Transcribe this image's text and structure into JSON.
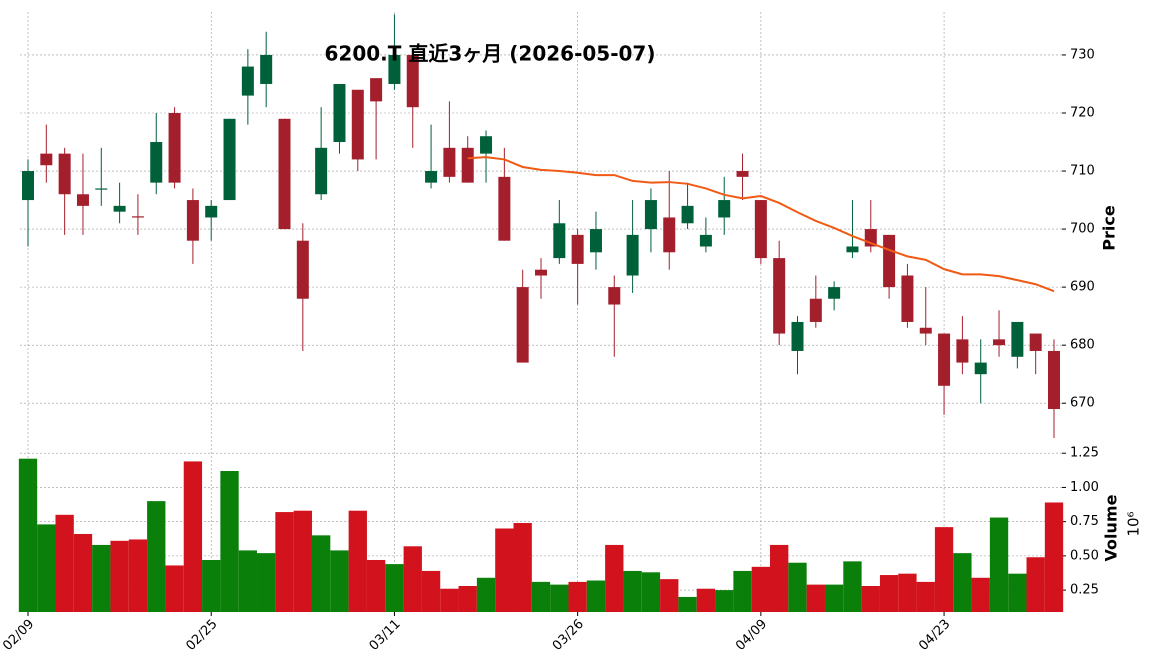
{
  "chart_data": {
    "type": "candlestick",
    "title": "6200.T 直近3ヶ月 (2026-05-07)",
    "categories": [
      "02/09",
      null,
      null,
      null,
      null,
      null,
      null,
      null,
      null,
      null,
      "02/25",
      null,
      null,
      null,
      null,
      null,
      null,
      null,
      null,
      null,
      "03/11",
      null,
      null,
      null,
      null,
      null,
      null,
      null,
      null,
      null,
      "03/26",
      null,
      null,
      null,
      null,
      null,
      null,
      null,
      null,
      null,
      "04/09",
      null,
      null,
      null,
      null,
      null,
      null,
      null,
      null,
      null,
      "04/23",
      null,
      null,
      null,
      null,
      null,
      null
    ],
    "open": [
      705,
      713,
      713,
      706,
      707,
      703,
      702.2,
      708,
      720,
      705,
      702,
      705,
      723,
      725,
      719,
      698,
      706,
      715,
      724,
      726,
      725,
      730,
      708,
      714,
      714,
      713,
      709,
      690,
      693,
      695,
      699,
      696,
      690,
      692,
      700,
      702,
      701,
      697,
      702,
      710,
      705,
      695,
      679,
      688,
      688,
      696,
      700,
      699,
      692,
      683,
      682,
      681,
      675,
      681,
      678,
      682,
      679
    ],
    "high": [
      712,
      718,
      714,
      713,
      714,
      708,
      706,
      720,
      721,
      707,
      705,
      719,
      731,
      734,
      719,
      701,
      721,
      725,
      724,
      726,
      737,
      730,
      718,
      722,
      716,
      717,
      714,
      693,
      695,
      705,
      700,
      703,
      692,
      705,
      707,
      710,
      708,
      702,
      709,
      713,
      705,
      698,
      685,
      692,
      691,
      705,
      705,
      699,
      694,
      690,
      682,
      685,
      681,
      686,
      684,
      682,
      681
    ],
    "low": [
      697,
      708,
      699,
      699,
      704,
      701,
      699,
      706,
      707,
      694,
      698,
      705,
      718,
      721,
      700,
      679,
      705,
      713,
      710,
      712,
      724,
      714,
      707,
      708,
      708,
      708,
      698,
      677,
      688,
      694,
      687,
      693,
      678,
      689,
      696,
      693,
      700,
      696,
      699,
      705,
      694,
      680,
      675,
      683,
      686,
      695,
      696,
      688,
      683,
      680,
      668,
      675,
      670,
      678,
      676,
      675,
      664
    ],
    "close": [
      710,
      711,
      706,
      704,
      707,
      704,
      702,
      715,
      708,
      698,
      704,
      719,
      728,
      730,
      700,
      688,
      714,
      725,
      712,
      722,
      730,
      721,
      710,
      709,
      708,
      716,
      698,
      677,
      692,
      701,
      694,
      700,
      687,
      699,
      705,
      696,
      704,
      699,
      705,
      709,
      695,
      682,
      684,
      684,
      690,
      697,
      697,
      690,
      684,
      682,
      673,
      677,
      677,
      680,
      684,
      679,
      669
    ],
    "up_color": "#00603a",
    "down_color": "#a31f2c",
    "ma": {
      "color": "#f05a14",
      "values": [
        null,
        null,
        null,
        null,
        null,
        null,
        null,
        null,
        null,
        null,
        null,
        null,
        null,
        null,
        null,
        null,
        null,
        null,
        null,
        null,
        null,
        null,
        null,
        null,
        712.2,
        712.4,
        712,
        710.7,
        710.2,
        710,
        709.7,
        709.3,
        709.3,
        708.3,
        708,
        708.1,
        707.8,
        707,
        705.9,
        705.3,
        705.7,
        704.5,
        702.9,
        701.4,
        700.2,
        698.8,
        697.6,
        696.4,
        695.3,
        694.7,
        693.1,
        692.2,
        692.2,
        691.9,
        691.2,
        690.5,
        689.3
      ]
    },
    "ylabel": "Price",
    "ylim": [
      662.8,
      737.4
    ],
    "yticks": [
      670,
      680,
      690,
      700,
      710,
      720,
      730
    ],
    "grid": true,
    "volume": {
      "ylabel": "Volume",
      "offset_label": "10⁶",
      "values": [
        1.21,
        0.73,
        0.8,
        0.66,
        0.58,
        0.61,
        0.62,
        0.9,
        0.43,
        1.19,
        0.47,
        1.12,
        0.54,
        0.52,
        0.82,
        0.83,
        0.65,
        0.54,
        0.83,
        0.47,
        0.44,
        0.57,
        0.39,
        0.26,
        0.28,
        0.34,
        0.7,
        0.74,
        0.31,
        0.29,
        0.31,
        0.32,
        0.58,
        0.39,
        0.38,
        0.33,
        0.2,
        0.26,
        0.25,
        0.39,
        0.42,
        0.58,
        0.45,
        0.29,
        0.29,
        0.46,
        0.28,
        0.36,
        0.37,
        0.31,
        0.71,
        0.52,
        0.34,
        0.78,
        0.37,
        0.49,
        0.89
      ],
      "colors": [
        "#0a800a",
        "#0a800a",
        "#d2121c",
        "#d2121c",
        "#0a800a",
        "#d2121c",
        "#d2121c",
        "#0a800a",
        "#d2121c",
        "#d2121c",
        "#0a800a",
        "#0a800a",
        "#0a800a",
        "#0a800a",
        "#d2121c",
        "#d2121c",
        "#0a800a",
        "#0a800a",
        "#d2121c",
        "#d2121c",
        "#0a800a",
        "#d2121c",
        "#d2121c",
        "#d2121c",
        "#d2121c",
        "#0a800a",
        "#d2121c",
        "#d2121c",
        "#0a800a",
        "#0a800a",
        "#d2121c",
        "#0a800a",
        "#d2121c",
        "#0a800a",
        "#0a800a",
        "#d2121c",
        "#0a800a",
        "#d2121c",
        "#0a800a",
        "#0a800a",
        "#d2121c",
        "#d2121c",
        "#0a800a",
        "#d2121c",
        "#0a800a",
        "#0a800a",
        "#d2121c",
        "#d2121c",
        "#d2121c",
        "#d2121c",
        "#d2121c",
        "#0a800a",
        "#d2121c",
        "#0a800a",
        "#0a800a",
        "#d2121c",
        "#d2121c"
      ],
      "ylim": [
        0.09,
        1.31
      ],
      "yticks": [
        0.25,
        {
          "value": 0.5,
          "label": "0.50"
        },
        0.75,
        {
          "value": 1.0,
          "label": "1.00"
        },
        1.25
      ]
    }
  }
}
